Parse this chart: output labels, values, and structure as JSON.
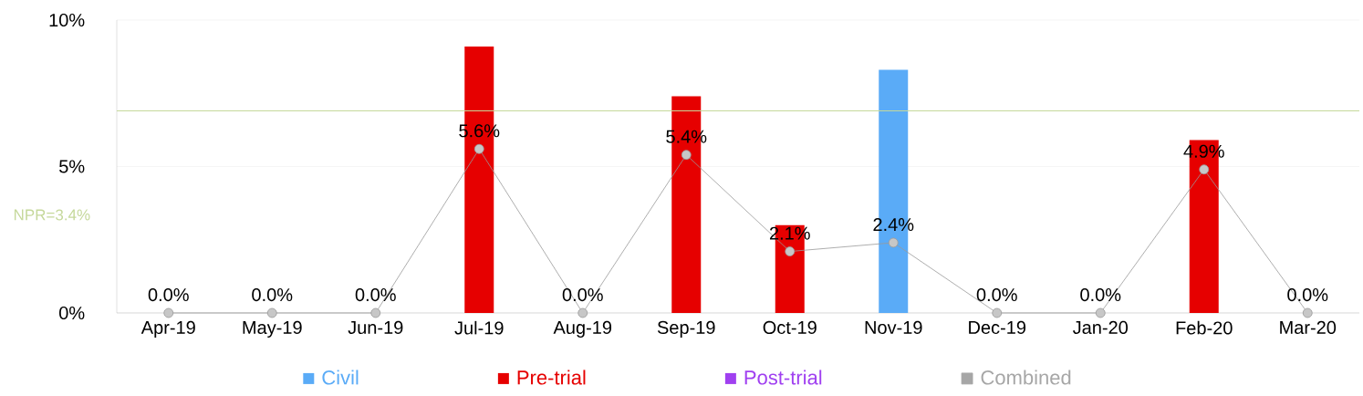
{
  "chart_data": {
    "type": "bar",
    "categories": [
      "Apr-19",
      "May-19",
      "Jun-19",
      "Jul-19",
      "Aug-19",
      "Sep-19",
      "Oct-19",
      "Nov-19",
      "Dec-19",
      "Jan-20",
      "Feb-20",
      "Mar-20"
    ],
    "series": [
      {
        "name": "Civil",
        "color": "#5aabf7",
        "values": [
          null,
          null,
          null,
          null,
          null,
          null,
          null,
          8.3,
          null,
          null,
          null,
          null
        ]
      },
      {
        "name": "Pre-trial",
        "color": "#e60000",
        "values": [
          null,
          null,
          null,
          9.1,
          null,
          7.4,
          3.0,
          null,
          null,
          null,
          5.9,
          null
        ]
      },
      {
        "name": "Post-trial",
        "color": "#a040f0",
        "values": [
          null,
          null,
          null,
          null,
          null,
          null,
          null,
          null,
          null,
          null,
          null,
          null
        ]
      },
      {
        "name": "Combined",
        "type": "line",
        "color": "#a6a6a6",
        "values": [
          0.0,
          0.0,
          0.0,
          5.6,
          0.0,
          5.4,
          2.1,
          2.4,
          0.0,
          0.0,
          4.9,
          0.0
        ],
        "value_labels": [
          "0.0%",
          "0.0%",
          "0.0%",
          "5.6%",
          "0.0%",
          "5.4%",
          "2.1%",
          "2.4%",
          "0.0%",
          "0.0%",
          "4.9%",
          "0.0%"
        ],
        "marker": "circle"
      }
    ],
    "ylim": [
      0,
      10
    ],
    "yticks": [
      {
        "value": 0,
        "label": "0%"
      },
      {
        "value": 5,
        "label": "5%"
      },
      {
        "value": 10,
        "label": "10%"
      }
    ],
    "grid": "y",
    "legend": "bottom",
    "ref_lines": [
      {
        "axis": "y",
        "value": 6.9,
        "color": "#c5d89a"
      }
    ],
    "annotations": [
      "NPR=3.4%"
    ]
  }
}
